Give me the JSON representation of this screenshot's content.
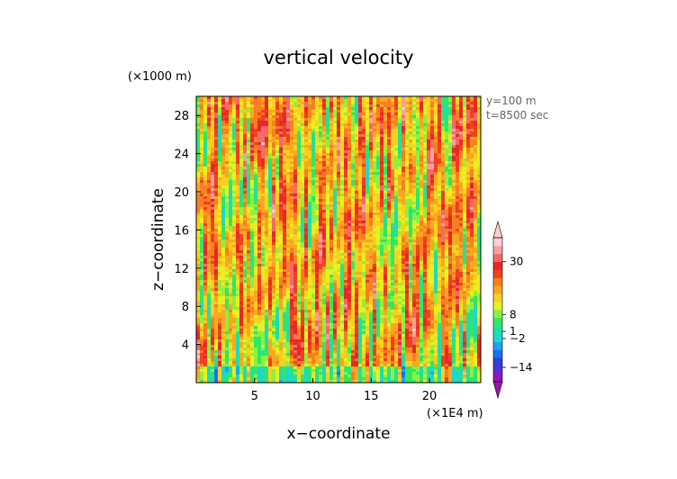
{
  "chart_data": {
    "type": "heatmap",
    "title": "vertical velocity",
    "xlabel": "x−coordinate",
    "ylabel": "z−coordinate",
    "x_unit": "(×1E4 m)",
    "y_unit": "(×1000 m)",
    "annotations": [
      "y=100 m",
      "t=8500 sec"
    ],
    "xlim": [
      0,
      24.4
    ],
    "ylim": [
      0,
      30
    ],
    "x_ticks": [
      5,
      10,
      15,
      20
    ],
    "y_ticks": [
      4,
      8,
      12,
      16,
      20,
      24,
      28
    ],
    "colorbar": {
      "tick_labels": [
        "30",
        "8",
        "1",
        "−2",
        "−14"
      ],
      "tick_values": [
        30,
        8,
        1,
        -2,
        -14
      ],
      "range": [
        -20,
        40
      ],
      "extend": "both",
      "colors": [
        "#9b11b4",
        "#5a2fd0",
        "#2a3fe0",
        "#1a70f0",
        "#17a8f0",
        "#1ed6d0",
        "#20e0a0",
        "#30e860",
        "#8ef040",
        "#e8f020",
        "#f8d020",
        "#f8a820",
        "#f88020",
        "#f04020",
        "#e82828",
        "#f46a6a",
        "#f8a0a0",
        "#fcd0d0"
      ]
    }
  }
}
